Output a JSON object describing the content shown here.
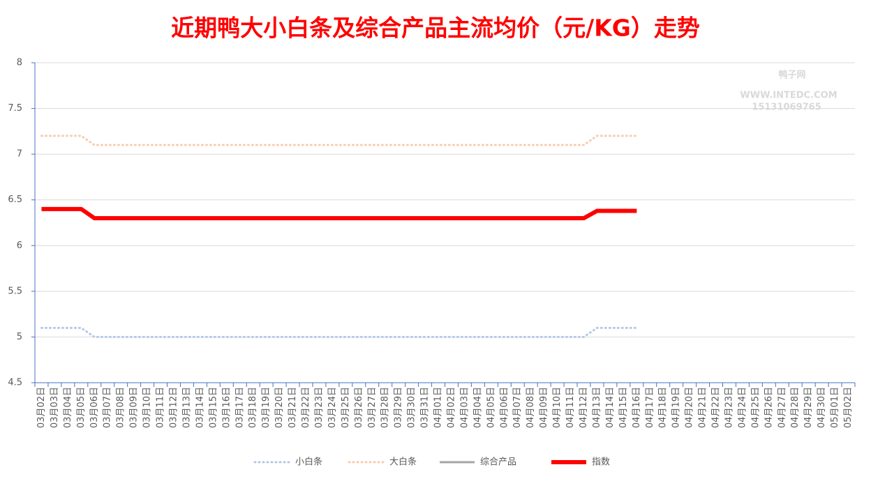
{
  "chart_data": {
    "type": "line",
    "title": "近期鸭大小白条及综合产品主流均价（元/KG）走势",
    "watermark": [
      "鸭子网",
      "WWW.INTEDC.COM",
      "15131069765"
    ],
    "categories": [
      "03月02日",
      "03月03日",
      "03月04日",
      "03月05日",
      "03月06日",
      "03月07日",
      "03月08日",
      "03月09日",
      "03月10日",
      "03月11日",
      "03月12日",
      "03月13日",
      "03月14日",
      "03月15日",
      "03月16日",
      "03月17日",
      "03月18日",
      "03月19日",
      "03月20日",
      "03月21日",
      "03月22日",
      "03月23日",
      "03月24日",
      "03月25日",
      "03月26日",
      "03月27日",
      "03月28日",
      "03月29日",
      "03月30日",
      "03月31日",
      "04月01日",
      "04月02日",
      "04月03日",
      "04月04日",
      "04月05日",
      "04月06日",
      "04月07日",
      "04月08日",
      "04月09日",
      "04月10日",
      "04月11日",
      "04月12日",
      "04月13日",
      "04月14日",
      "04月15日",
      "04月16日",
      "04月17日",
      "04月18日",
      "04月19日",
      "04月20日",
      "04月21日",
      "04月22日",
      "04月23日",
      "04月24日",
      "04月25日",
      "04月26日",
      "04月27日",
      "04月28日",
      "04月29日",
      "04月30日",
      "05月01日",
      "05月02日"
    ],
    "series": [
      {
        "name": "小白条",
        "color": "#b4c7e7",
        "style": "dotted",
        "values": [
          5.1,
          5.1,
          5.1,
          5.1,
          5,
          5,
          5,
          5,
          5,
          5,
          5,
          5,
          5,
          5,
          5,
          5,
          5,
          5,
          5,
          5,
          5,
          5,
          5,
          5,
          5,
          5,
          5,
          5,
          5,
          5,
          5,
          5,
          5,
          5,
          5,
          5,
          5,
          5,
          5,
          5,
          5,
          5,
          5.1,
          5.1,
          5.1,
          5.1,
          null,
          null,
          null,
          null,
          null,
          null,
          null,
          null,
          null,
          null,
          null,
          null,
          null,
          null,
          null,
          null
        ]
      },
      {
        "name": "大白条",
        "color": "#f8cbad",
        "style": "dotted",
        "values": [
          7.2,
          7.2,
          7.2,
          7.2,
          7.1,
          7.1,
          7.1,
          7.1,
          7.1,
          7.1,
          7.1,
          7.1,
          7.1,
          7.1,
          7.1,
          7.1,
          7.1,
          7.1,
          7.1,
          7.1,
          7.1,
          7.1,
          7.1,
          7.1,
          7.1,
          7.1,
          7.1,
          7.1,
          7.1,
          7.1,
          7.1,
          7.1,
          7.1,
          7.1,
          7.1,
          7.1,
          7.1,
          7.1,
          7.1,
          7.1,
          7.1,
          7.1,
          7.2,
          7.2,
          7.2,
          7.2,
          null,
          null,
          null,
          null,
          null,
          null,
          null,
          null,
          null,
          null,
          null,
          null,
          null,
          null,
          null,
          null
        ]
      },
      {
        "name": "综合产品",
        "color": "#a5a5a5",
        "style": "solid",
        "values": [
          6.4,
          6.4,
          6.4,
          6.4,
          6.3,
          6.3,
          6.3,
          6.3,
          6.3,
          6.3,
          6.3,
          6.3,
          6.3,
          6.3,
          6.3,
          6.3,
          6.3,
          6.3,
          6.3,
          6.3,
          6.3,
          6.3,
          6.3,
          6.3,
          6.3,
          6.3,
          6.3,
          6.3,
          6.3,
          6.3,
          6.3,
          6.3,
          6.3,
          6.3,
          6.3,
          6.3,
          6.3,
          6.3,
          6.3,
          6.3,
          6.3,
          6.3,
          6.38,
          6.38,
          6.38,
          6.38,
          null,
          null,
          null,
          null,
          null,
          null,
          null,
          null,
          null,
          null,
          null,
          null,
          null,
          null,
          null,
          null
        ]
      },
      {
        "name": "指数",
        "color": "#ff0000",
        "style": "thick",
        "values": [
          6.4,
          6.4,
          6.4,
          6.4,
          6.3,
          6.3,
          6.3,
          6.3,
          6.3,
          6.3,
          6.3,
          6.3,
          6.3,
          6.3,
          6.3,
          6.3,
          6.3,
          6.3,
          6.3,
          6.3,
          6.3,
          6.3,
          6.3,
          6.3,
          6.3,
          6.3,
          6.3,
          6.3,
          6.3,
          6.3,
          6.3,
          6.3,
          6.3,
          6.3,
          6.3,
          6.3,
          6.3,
          6.3,
          6.3,
          6.3,
          6.3,
          6.3,
          6.38,
          6.38,
          6.38,
          6.38,
          null,
          null,
          null,
          null,
          null,
          null,
          null,
          null,
          null,
          null,
          null,
          null,
          null,
          null,
          null,
          null
        ]
      }
    ],
    "ylim": [
      4.5,
      8
    ],
    "yticks": [
      4.5,
      5,
      5.5,
      6,
      6.5,
      7,
      7.5,
      8
    ],
    "grid": true,
    "legend": "bottom"
  }
}
